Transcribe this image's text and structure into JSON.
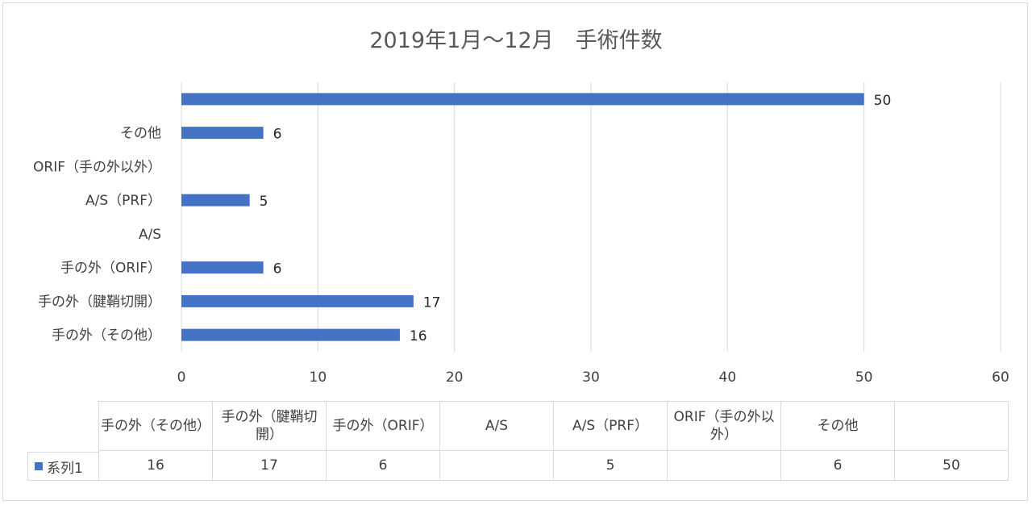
{
  "chart_data": {
    "type": "bar",
    "orientation": "horizontal",
    "title": "2019年1月～12月　手術件数",
    "categories": [
      "手の外（その他）",
      "手の外（腱鞘切開）",
      "手の外（ORIF）",
      "A/S",
      "A/S（PRF）",
      "ORIF（手の外以外）",
      "その他",
      ""
    ],
    "table_headers": [
      "手の外（その他）",
      "手の外（腱鞘切\n開）",
      "手の外（ORIF）",
      "A/S",
      "A/S（PRF）",
      "ORIF（手の外以\n外）",
      "その他",
      ""
    ],
    "series": [
      {
        "name": "系列1",
        "values": [
          16,
          17,
          6,
          null,
          5,
          null,
          6,
          50
        ],
        "color": "#4472c4"
      }
    ],
    "xlim": [
      0,
      60
    ],
    "xticks": [
      0,
      10,
      20,
      30,
      40,
      50,
      60
    ],
    "grid": true,
    "data_labels": true,
    "legend": "data-table"
  }
}
